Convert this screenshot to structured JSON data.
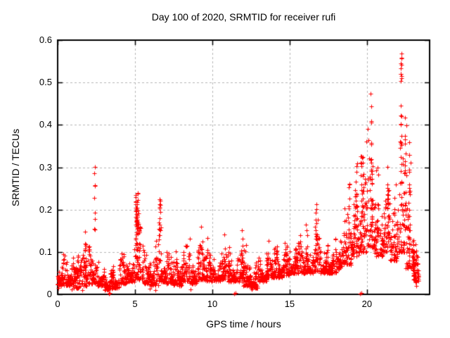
{
  "chart_data": {
    "type": "scatter",
    "title": "Day 100 of 2020, SRMTID for receiver rufi",
    "xlabel": "GPS time / hours",
    "ylabel": "SRMTID / TECUs",
    "xlim": [
      0,
      24.05
    ],
    "ylim": [
      0,
      0.6
    ],
    "xticks": [
      {
        "v": 0,
        "label": "0"
      },
      {
        "v": 5,
        "label": "5"
      },
      {
        "v": 10,
        "label": "10"
      },
      {
        "v": 15,
        "label": "15"
      },
      {
        "v": 20,
        "label": "20"
      }
    ],
    "yticks": [
      {
        "v": 0.0,
        "label": "0"
      },
      {
        "v": 0.1,
        "label": "0.1"
      },
      {
        "v": 0.2,
        "label": "0.2"
      },
      {
        "v": 0.3,
        "label": "0.3"
      },
      {
        "v": 0.4,
        "label": "0.4"
      },
      {
        "v": 0.5,
        "label": "0.5"
      },
      {
        "v": 0.6,
        "label": "0.6"
      }
    ],
    "grid": {
      "visible": true,
      "style": "dashed",
      "color": "#b5b5b5"
    },
    "legend": "none",
    "marker": {
      "shape": "plus",
      "color": "#ff0000",
      "size": 7
    },
    "background_color": "#ffffff",
    "border_color": "#000000",
    "distribution": {
      "note": "dense 30s-cadence SRMTID scatter reconstructed as banded envelope + spike columns; bands/spikes = [x0_or_center, x1_or_width, yLow, yHigh, nPoints]",
      "hump_period_hours": 0.85,
      "seed": 42,
      "bands": [
        [
          0.0,
          0.5,
          0.02,
          0.115,
          58
        ],
        [
          0.5,
          1.0,
          0.02,
          0.12,
          58
        ],
        [
          1.0,
          1.5,
          0.015,
          0.1,
          58
        ],
        [
          1.5,
          2.0,
          0.02,
          0.12,
          58
        ],
        [
          2.0,
          2.5,
          0.025,
          0.13,
          58
        ],
        [
          2.5,
          3.0,
          0.02,
          0.105,
          58
        ],
        [
          3.0,
          3.5,
          0.01,
          0.08,
          58
        ],
        [
          3.5,
          4.0,
          0.015,
          0.075,
          58
        ],
        [
          4.0,
          4.5,
          0.025,
          0.1,
          58
        ],
        [
          4.5,
          5.0,
          0.03,
          0.12,
          58
        ],
        [
          5.0,
          5.5,
          0.035,
          0.145,
          58
        ],
        [
          5.5,
          6.0,
          0.025,
          0.105,
          58
        ],
        [
          6.0,
          6.5,
          0.02,
          0.1,
          58
        ],
        [
          6.5,
          7.0,
          0.03,
          0.125,
          58
        ],
        [
          7.0,
          7.5,
          0.025,
          0.105,
          58
        ],
        [
          7.5,
          8.0,
          0.02,
          0.095,
          58
        ],
        [
          8.0,
          8.5,
          0.03,
          0.125,
          58
        ],
        [
          8.5,
          9.0,
          0.025,
          0.1,
          58
        ],
        [
          9.0,
          9.5,
          0.035,
          0.125,
          58
        ],
        [
          9.5,
          10.0,
          0.03,
          0.11,
          58
        ],
        [
          10.0,
          10.5,
          0.03,
          0.105,
          58
        ],
        [
          10.5,
          11.0,
          0.035,
          0.115,
          58
        ],
        [
          11.0,
          11.5,
          0.03,
          0.105,
          58
        ],
        [
          11.5,
          12.0,
          0.03,
          0.12,
          58
        ],
        [
          12.0,
          12.5,
          0.02,
          0.09,
          58
        ],
        [
          12.5,
          13.0,
          0.015,
          0.08,
          58
        ],
        [
          13.0,
          13.5,
          0.03,
          0.1,
          58
        ],
        [
          13.5,
          14.0,
          0.04,
          0.11,
          58
        ],
        [
          14.0,
          14.5,
          0.04,
          0.125,
          58
        ],
        [
          14.5,
          15.0,
          0.045,
          0.115,
          58
        ],
        [
          15.0,
          15.5,
          0.05,
          0.12,
          58
        ],
        [
          15.5,
          16.0,
          0.05,
          0.13,
          58
        ],
        [
          16.0,
          16.5,
          0.05,
          0.14,
          58
        ],
        [
          16.5,
          17.0,
          0.055,
          0.165,
          58
        ],
        [
          17.0,
          17.5,
          0.05,
          0.13,
          58
        ],
        [
          17.5,
          18.0,
          0.05,
          0.135,
          58
        ],
        [
          18.0,
          18.5,
          0.06,
          0.16,
          58
        ],
        [
          18.5,
          19.0,
          0.07,
          0.2,
          58
        ],
        [
          19.0,
          19.5,
          0.09,
          0.26,
          58
        ],
        [
          19.5,
          20.0,
          0.1,
          0.3,
          58
        ],
        [
          20.0,
          20.5,
          0.11,
          0.32,
          58
        ],
        [
          20.5,
          21.0,
          0.09,
          0.24,
          58
        ],
        [
          21.0,
          21.5,
          0.1,
          0.27,
          58
        ],
        [
          21.5,
          22.0,
          0.08,
          0.26,
          58
        ],
        [
          22.0,
          22.5,
          0.1,
          0.33,
          58
        ],
        [
          22.5,
          23.0,
          0.06,
          0.28,
          58
        ],
        [
          23.0,
          23.35,
          0.03,
          0.13,
          40
        ]
      ],
      "spikes": [
        [
          2.38,
          0.05,
          0.13,
          0.305,
          9
        ],
        [
          5.12,
          0.2,
          0.12,
          0.24,
          40
        ],
        [
          5.3,
          0.1,
          0.1,
          0.18,
          10
        ],
        [
          6.62,
          0.13,
          0.12,
          0.23,
          18
        ],
        [
          16.7,
          0.1,
          0.13,
          0.215,
          8
        ],
        [
          18.85,
          0.08,
          0.13,
          0.27,
          7
        ],
        [
          19.3,
          0.14,
          0.15,
          0.31,
          12
        ],
        [
          19.65,
          0.16,
          0.15,
          0.33,
          20
        ],
        [
          20.25,
          0.1,
          0.25,
          0.48,
          12
        ],
        [
          20.35,
          0.1,
          0.18,
          0.35,
          10
        ],
        [
          21.4,
          0.2,
          0.13,
          0.27,
          16
        ],
        [
          22.2,
          0.1,
          0.28,
          0.46,
          12
        ],
        [
          22.2,
          0.06,
          0.49,
          0.575,
          11
        ],
        [
          22.5,
          0.12,
          0.2,
          0.42,
          12
        ],
        [
          22.75,
          0.12,
          0.1,
          0.36,
          18
        ],
        [
          23.0,
          0.14,
          0.05,
          0.105,
          28
        ],
        [
          23.15,
          0.1,
          0.02,
          0.12,
          8
        ]
      ],
      "low_outliers": [
        [
          3.3,
          0.002
        ],
        [
          3.36,
          0.004
        ],
        [
          11.42,
          0.002
        ],
        [
          11.48,
          0.004
        ],
        [
          19.55,
          0.002
        ],
        [
          19.62,
          0.004
        ],
        [
          0.9,
          0.012
        ],
        [
          5.95,
          0.013
        ],
        [
          6.3,
          0.01
        ],
        [
          8.6,
          0.012
        ],
        [
          12.55,
          0.012
        ],
        [
          23.2,
          0.02
        ],
        [
          0.05,
          0.015
        ],
        [
          1.6,
          0.01
        ]
      ]
    }
  }
}
